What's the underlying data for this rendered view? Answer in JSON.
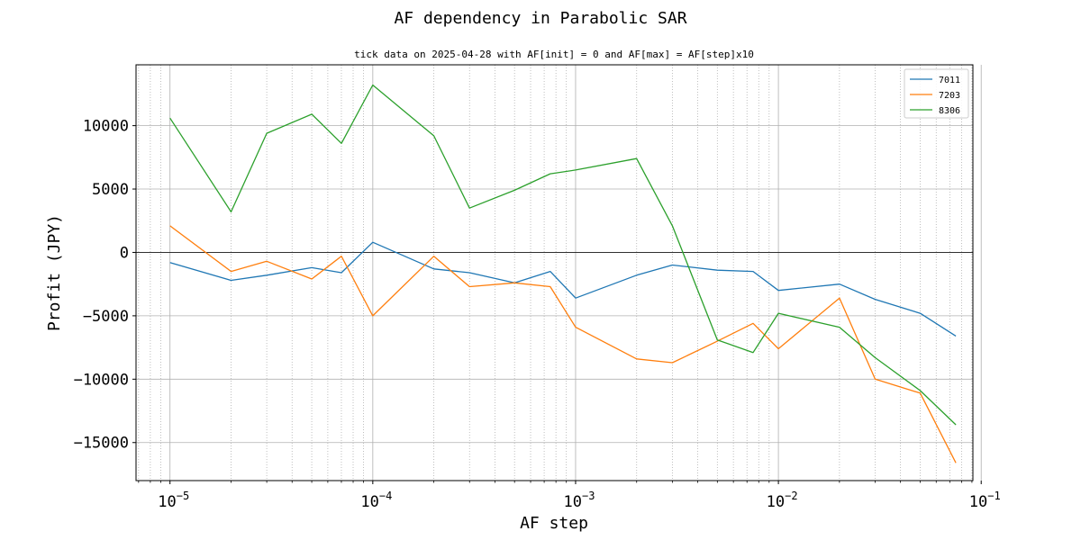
{
  "chart_data": {
    "type": "line",
    "title": "AF dependency in Parabolic SAR",
    "subtitle": "tick data on 2025-04-28 with AF[init] = 0 and AF[max] = AF[step]x10",
    "xlabel": "AF step",
    "ylabel": "Profit (JPY)",
    "xscale": "log",
    "xlim": [
      6.8e-06,
      0.091
    ],
    "ylim": [
      -18000,
      14800
    ],
    "grid": true,
    "legend_position": "top-right",
    "x_ticks": [
      {
        "value": 1e-05,
        "base": "10",
        "exp": "−5"
      },
      {
        "value": 0.0001,
        "base": "10",
        "exp": "−4"
      },
      {
        "value": 0.001,
        "base": "10",
        "exp": "−3"
      },
      {
        "value": 0.01,
        "base": "10",
        "exp": "−2"
      },
      {
        "value": 0.1,
        "base": "10",
        "exp": "−1"
      }
    ],
    "y_ticks": [
      {
        "value": 10000,
        "label": "10000"
      },
      {
        "value": 5000,
        "label": "5000"
      },
      {
        "value": 0,
        "label": "0"
      },
      {
        "value": -5000,
        "label": "−5000"
      },
      {
        "value": -10000,
        "label": "−10000"
      },
      {
        "value": -15000,
        "label": "−15000"
      }
    ],
    "x": [
      1e-05,
      2e-05,
      3e-05,
      5e-05,
      7e-05,
      0.0001,
      0.0002,
      0.0003,
      0.0005,
      0.00075,
      0.001,
      0.002,
      0.003,
      0.005,
      0.0075,
      0.01,
      0.02,
      0.03,
      0.05,
      0.075
    ],
    "series": [
      {
        "name": "7011",
        "color": "#1f77b4",
        "values": [
          -800,
          -2200,
          -1800,
          -1200,
          -1600,
          800,
          -1300,
          -1600,
          -2400,
          -1500,
          -3600,
          -1800,
          -1000,
          -1400,
          -1500,
          -3000,
          -2500,
          -3700,
          -4800,
          -6600
        ]
      },
      {
        "name": "7203",
        "color": "#ff7f0e",
        "values": [
          2100,
          -1500,
          -700,
          -2100,
          -300,
          -5000,
          -300,
          -2700,
          -2400,
          -2700,
          -5900,
          -8400,
          -8700,
          -7000,
          -5600,
          -7600,
          -3600,
          -10000,
          -11100,
          -16600
        ]
      },
      {
        "name": "8306",
        "color": "#2ca02c",
        "values": [
          10600,
          3200,
          9400,
          10900,
          8600,
          13200,
          9200,
          3500,
          4900,
          6200,
          6500,
          7400,
          2100,
          -6900,
          -7900,
          -4800,
          -5900,
          -8300,
          -10900,
          -13600
        ]
      }
    ]
  }
}
